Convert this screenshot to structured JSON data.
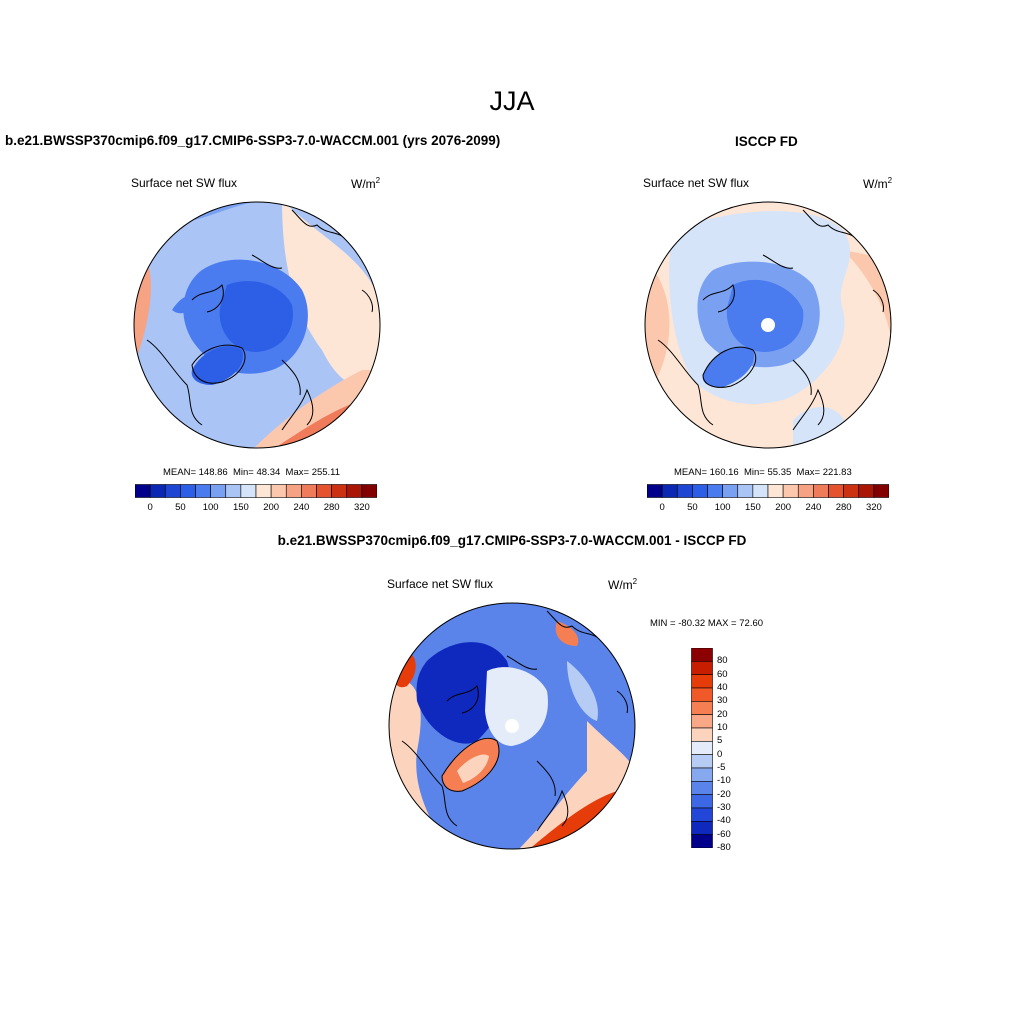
{
  "figure": {
    "season": "JJA",
    "variable": "Surface net SW flux",
    "units_base": "W/m",
    "units_exp": "2"
  },
  "panels": [
    {
      "id": "model",
      "title": "b.e21.BWSSP370cmip6.f09_g17.CMIP6-SSP3-7.0-WACCM.001 (yrs 2076-2099)",
      "mean_label": "MEAN=",
      "mean": "148.86",
      "min_label": "Min=",
      "min": "48.34",
      "max_label": "Max=",
      "max": "255.11"
    },
    {
      "id": "obs",
      "title": "ISCCP FD",
      "mean_label": "MEAN=",
      "mean": "160.16",
      "min_label": "Min=",
      "min": "55.35",
      "max_label": "Max=",
      "max": "221.83"
    },
    {
      "id": "diff",
      "title": "b.e21.BWSSP370cmip6.f09_g17.CMIP6-SSP3-7.0-WACCM.001 - ISCCP FD",
      "min_label": "MIN =",
      "min": "-80.32",
      "max_label": "MAX =",
      "max": "72.60"
    }
  ],
  "colorbar_abs": {
    "colors": [
      "#00008b",
      "#0a28b4",
      "#1e46d2",
      "#2d5ee6",
      "#4a7cf0",
      "#7aa0f2",
      "#aac4f6",
      "#d6e4fa",
      "#fde6d6",
      "#fbc8ae",
      "#f6a384",
      "#f07b5a",
      "#e4532e",
      "#cc3112",
      "#aa1606",
      "#820000"
    ],
    "tick_labels": [
      "0",
      "50",
      "100",
      "150",
      "200",
      "240",
      "280",
      "320"
    ]
  },
  "colorbar_diff": {
    "colors": [
      "#8b0000",
      "#c81e00",
      "#e63c0a",
      "#f05a28",
      "#f57e52",
      "#f8a886",
      "#fcd4be",
      "#e4ecfa",
      "#b6ccf4",
      "#86a8ee",
      "#5a84ea",
      "#3c68e6",
      "#2246d8",
      "#0f28be",
      "#00008b"
    ],
    "tick_labels": [
      "80",
      "60",
      "40",
      "30",
      "20",
      "10",
      "5",
      "0",
      "-5",
      "-10",
      "-20",
      "-30",
      "-40",
      "-60",
      "-80"
    ]
  },
  "chart_data": [
    {
      "type": "heatmap",
      "title": "b.e21.BWSSP370cmip6.f09_g17.CMIP6-SSP3-7.0-WACCM.001 (yrs 2076-2099)",
      "subtitle": "Surface net SW flux",
      "units": "W/m2",
      "projection": "north polar stereographic",
      "contour_levels": [
        0,
        25,
        50,
        75,
        100,
        125,
        150,
        175,
        200,
        220,
        240,
        260,
        280,
        300,
        320
      ],
      "stats": {
        "mean": 148.86,
        "min": 48.34,
        "max": 255.11
      }
    },
    {
      "type": "heatmap",
      "title": "ISCCP FD",
      "subtitle": "Surface net SW flux",
      "units": "W/m2",
      "projection": "north polar stereographic",
      "contour_levels": [
        0,
        25,
        50,
        75,
        100,
        125,
        150,
        175,
        200,
        220,
        240,
        260,
        280,
        300,
        320
      ],
      "stats": {
        "mean": 160.16,
        "min": 55.35,
        "max": 221.83
      }
    },
    {
      "type": "heatmap",
      "title": "b.e21.BWSSP370cmip6.f09_g17.CMIP6-SSP3-7.0-WACCM.001 - ISCCP FD",
      "subtitle": "Surface net SW flux",
      "units": "W/m2",
      "projection": "north polar stereographic",
      "contour_levels": [
        -80,
        -60,
        -40,
        -30,
        -20,
        -10,
        -5,
        0,
        5,
        10,
        20,
        30,
        40,
        60,
        80
      ],
      "stats": {
        "min": -80.32,
        "max": 72.6
      }
    }
  ]
}
